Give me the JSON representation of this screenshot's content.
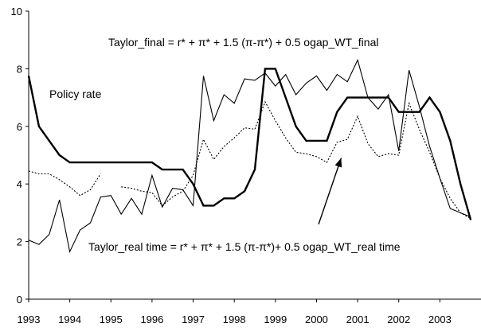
{
  "chart_data": {
    "type": "line",
    "title": "",
    "xlabel": "",
    "ylabel": "",
    "xlim": [
      1993.0,
      2004.0
    ],
    "ylim": [
      0,
      10
    ],
    "grid": false,
    "x_ticks": [
      "1993",
      "1994",
      "1995",
      "1996",
      "1997",
      "1998",
      "1999",
      "2000",
      "2001",
      "2002",
      "2003"
    ],
    "y_ticks": [
      "0",
      "2",
      "4",
      "6",
      "8",
      "10"
    ],
    "annotations": {
      "policy_label": "Policy rate",
      "taylor_final_label": "Taylor_final = r* + π* + 1.5 (π-π*) + 0.5 ogap_WT_final",
      "taylor_realtime_label": "Taylor_real time = r* + π* + 1.5 (π-π*)+ 0.5 ogap_WT_real time"
    },
    "series": [
      {
        "key": "policy",
        "style": "thick",
        "points": [
          [
            1993.0,
            7.75
          ],
          [
            1993.25,
            6.0
          ],
          [
            1993.5,
            5.5
          ],
          [
            1993.75,
            5.0
          ],
          [
            1994.0,
            4.75
          ],
          [
            1994.5,
            4.75
          ],
          [
            1995.0,
            4.75
          ],
          [
            1995.5,
            4.75
          ],
          [
            1996.0,
            4.75
          ],
          [
            1996.25,
            4.5
          ],
          [
            1996.5,
            4.5
          ],
          [
            1996.75,
            4.5
          ],
          [
            1997.0,
            4.0
          ],
          [
            1997.25,
            3.25
          ],
          [
            1997.5,
            3.25
          ],
          [
            1997.75,
            3.5
          ],
          [
            1998.0,
            3.5
          ],
          [
            1998.25,
            3.75
          ],
          [
            1998.5,
            4.5
          ],
          [
            1998.75,
            8.0
          ],
          [
            1999.0,
            8.0
          ],
          [
            1999.25,
            7.0
          ],
          [
            1999.5,
            6.0
          ],
          [
            1999.75,
            5.5
          ],
          [
            2000.0,
            5.5
          ],
          [
            2000.25,
            5.5
          ],
          [
            2000.5,
            6.5
          ],
          [
            2000.75,
            7.0
          ],
          [
            2001.0,
            7.0
          ],
          [
            2001.5,
            7.0
          ],
          [
            2001.75,
            7.0
          ],
          [
            2002.0,
            6.5
          ],
          [
            2002.25,
            6.5
          ],
          [
            2002.5,
            6.5
          ],
          [
            2002.75,
            7.0
          ],
          [
            2003.0,
            6.5
          ],
          [
            2003.25,
            5.5
          ],
          [
            2003.5,
            4.0
          ],
          [
            2003.75,
            2.75
          ]
        ]
      },
      {
        "key": "taylor_final",
        "style": "thin",
        "points": [
          [
            1993.0,
            2.05
          ],
          [
            1993.25,
            1.9
          ],
          [
            1993.5,
            2.25
          ],
          [
            1993.75,
            3.45
          ],
          [
            1994.0,
            1.65
          ],
          [
            1994.25,
            2.4
          ],
          [
            1994.5,
            2.65
          ],
          [
            1994.75,
            3.55
          ],
          [
            1995.0,
            3.6
          ],
          [
            1995.25,
            2.95
          ],
          [
            1995.5,
            3.5
          ],
          [
            1995.75,
            2.95
          ],
          [
            1996.0,
            4.3
          ],
          [
            1996.25,
            3.2
          ],
          [
            1996.5,
            3.85
          ],
          [
            1996.75,
            3.8
          ],
          [
            1997.0,
            3.25
          ],
          [
            1997.25,
            7.75
          ],
          [
            1997.5,
            6.2
          ],
          [
            1997.75,
            7.1
          ],
          [
            1998.0,
            6.8
          ],
          [
            1998.25,
            7.65
          ],
          [
            1998.5,
            7.6
          ],
          [
            1998.75,
            7.85
          ],
          [
            1999.0,
            7.4
          ],
          [
            1999.25,
            7.8
          ],
          [
            1999.5,
            7.1
          ],
          [
            1999.75,
            7.5
          ],
          [
            2000.0,
            7.75
          ],
          [
            2000.25,
            7.25
          ],
          [
            2000.5,
            7.8
          ],
          [
            2000.75,
            7.55
          ],
          [
            2001.0,
            8.3
          ],
          [
            2001.25,
            7.0
          ],
          [
            2001.5,
            6.6
          ],
          [
            2001.75,
            7.1
          ],
          [
            2002.0,
            5.15
          ],
          [
            2002.25,
            7.95
          ],
          [
            2002.5,
            6.7
          ],
          [
            2002.75,
            5.3
          ],
          [
            2003.0,
            4.2
          ],
          [
            2003.25,
            3.15
          ],
          [
            2003.5,
            3.0
          ],
          [
            2003.75,
            2.85
          ]
        ]
      },
      {
        "key": "taylor_realtime_a",
        "style": "dotted",
        "points": [
          [
            1993.0,
            4.45
          ],
          [
            1993.25,
            4.35
          ],
          [
            1993.5,
            4.35
          ],
          [
            1993.75,
            4.15
          ],
          [
            1994.0,
            3.9
          ],
          [
            1994.25,
            3.6
          ],
          [
            1994.5,
            3.8
          ],
          [
            1994.75,
            4.35
          ]
        ]
      },
      {
        "key": "taylor_realtime_b",
        "style": "dotted",
        "points": [
          [
            1995.25,
            3.9
          ],
          [
            1995.5,
            3.85
          ],
          [
            1995.75,
            3.75
          ],
          [
            1996.0,
            3.7
          ],
          [
            1996.25,
            3.25
          ],
          [
            1996.5,
            3.55
          ],
          [
            1996.75,
            3.75
          ],
          [
            1997.0,
            4.3
          ],
          [
            1997.25,
            5.55
          ],
          [
            1997.5,
            4.85
          ],
          [
            1997.75,
            5.3
          ],
          [
            1998.0,
            5.6
          ],
          [
            1998.25,
            5.95
          ],
          [
            1998.5,
            5.9
          ],
          [
            1998.75,
            6.85
          ],
          [
            1999.0,
            6.2
          ],
          [
            1999.25,
            5.6
          ],
          [
            1999.5,
            5.1
          ],
          [
            1999.75,
            5.05
          ],
          [
            2000.0,
            4.95
          ],
          [
            2000.25,
            4.75
          ],
          [
            2000.5,
            5.45
          ],
          [
            2000.75,
            5.55
          ],
          [
            2001.0,
            6.35
          ],
          [
            2001.25,
            5.4
          ],
          [
            2001.5,
            4.95
          ],
          [
            2001.75,
            5.05
          ],
          [
            2002.0,
            5.0
          ],
          [
            2002.25,
            6.8
          ],
          [
            2002.5,
            5.9
          ],
          [
            2002.75,
            5.1
          ],
          [
            2003.0,
            4.2
          ],
          [
            2003.25,
            3.5
          ],
          [
            2003.5,
            3.0
          ],
          [
            2003.75,
            2.8
          ]
        ]
      }
    ],
    "arrow": {
      "from": [
        2000.05,
        2.6
      ],
      "to": [
        2000.6,
        4.9
      ]
    }
  }
}
